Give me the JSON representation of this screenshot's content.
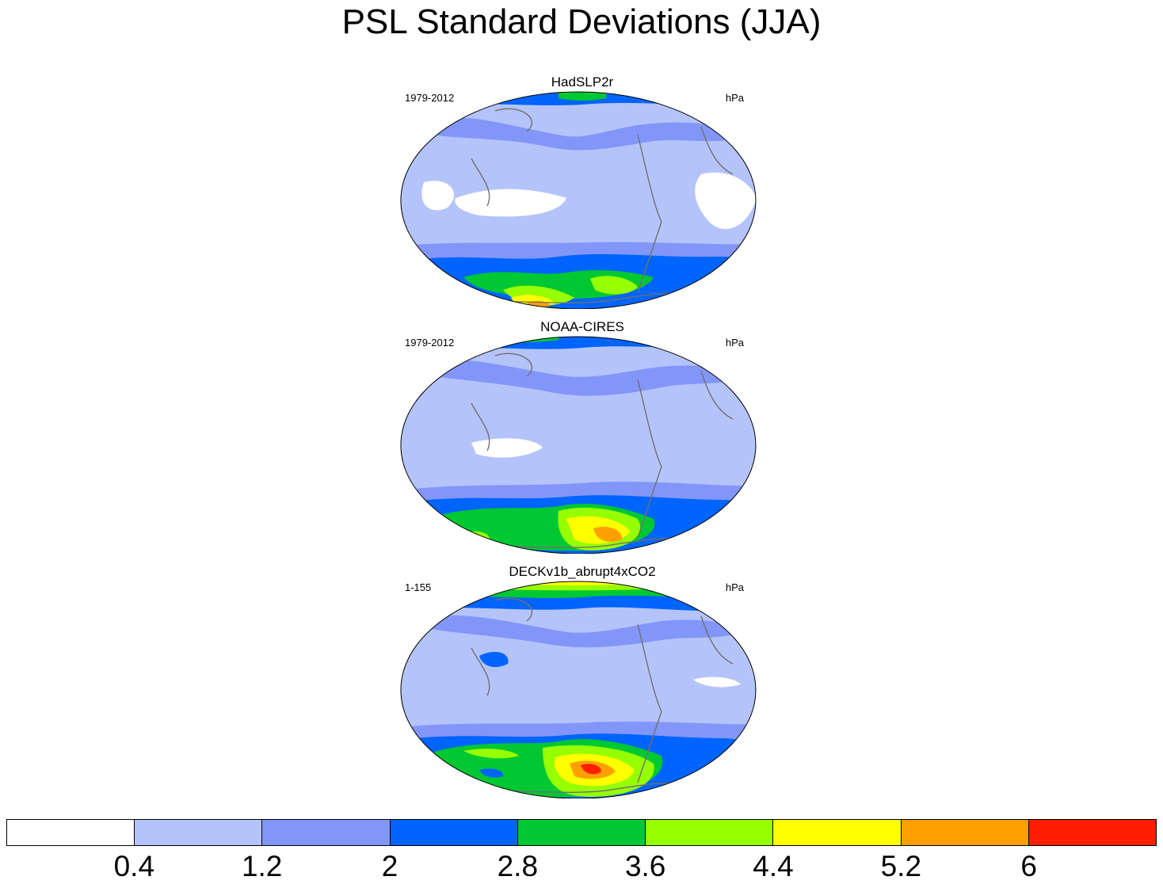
{
  "chart_data": {
    "type": "heatmap",
    "title": "PSL Standard Deviations (JJA)",
    "panels": [
      {
        "name": "HadSLP2r",
        "period": "1979-2012",
        "units": "hPa"
      },
      {
        "name": "NOAA-CIRES",
        "period": "1979-2012",
        "units": "hPa"
      },
      {
        "name": "DECKv1b_abrupt4xCO2",
        "period": "1-155",
        "units": "hPa"
      }
    ],
    "colorbar": {
      "levels": [
        "0.4",
        "1.2",
        "2",
        "2.8",
        "3.6",
        "4.4",
        "5.2",
        "6"
      ],
      "colors": [
        "#ffffff",
        "#b4c4fa",
        "#8296f9",
        "#0064ff",
        "#00c832",
        "#96ff00",
        "#ffff00",
        "#ffa000",
        "#ff1e00"
      ]
    }
  }
}
